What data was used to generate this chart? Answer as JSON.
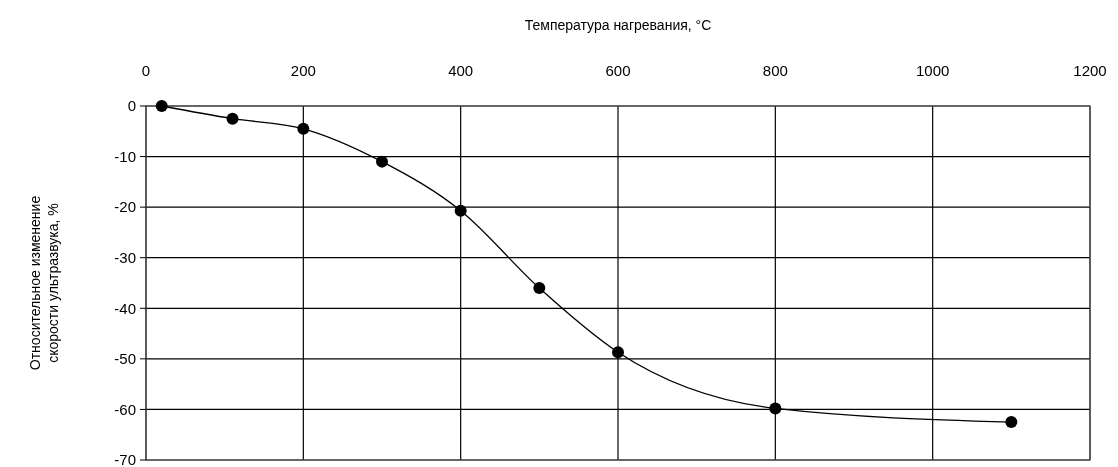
{
  "chart_data": {
    "type": "line",
    "xlabel": "Температура нагревания, °С",
    "ylabel": "Относительное изменение скорости ультразвука, %",
    "x": [
      20,
      110,
      200,
      300,
      400,
      500,
      600,
      800,
      1100
    ],
    "series": [
      {
        "color": "#000000",
        "values": [
          0,
          -2.5,
          -4.5,
          -11,
          -20.7,
          -36,
          -48.7,
          -59.8,
          -62.5
        ]
      }
    ],
    "xlim": [
      0,
      1200
    ],
    "xticks": [
      0,
      200,
      400,
      600,
      800,
      1000,
      1200
    ],
    "ylim": [
      -70,
      0
    ],
    "yticks": [
      0,
      -10,
      -20,
      -30,
      -40,
      -50,
      -60,
      -70
    ],
    "grid": true,
    "marker": "circle",
    "line_style": "solid"
  }
}
